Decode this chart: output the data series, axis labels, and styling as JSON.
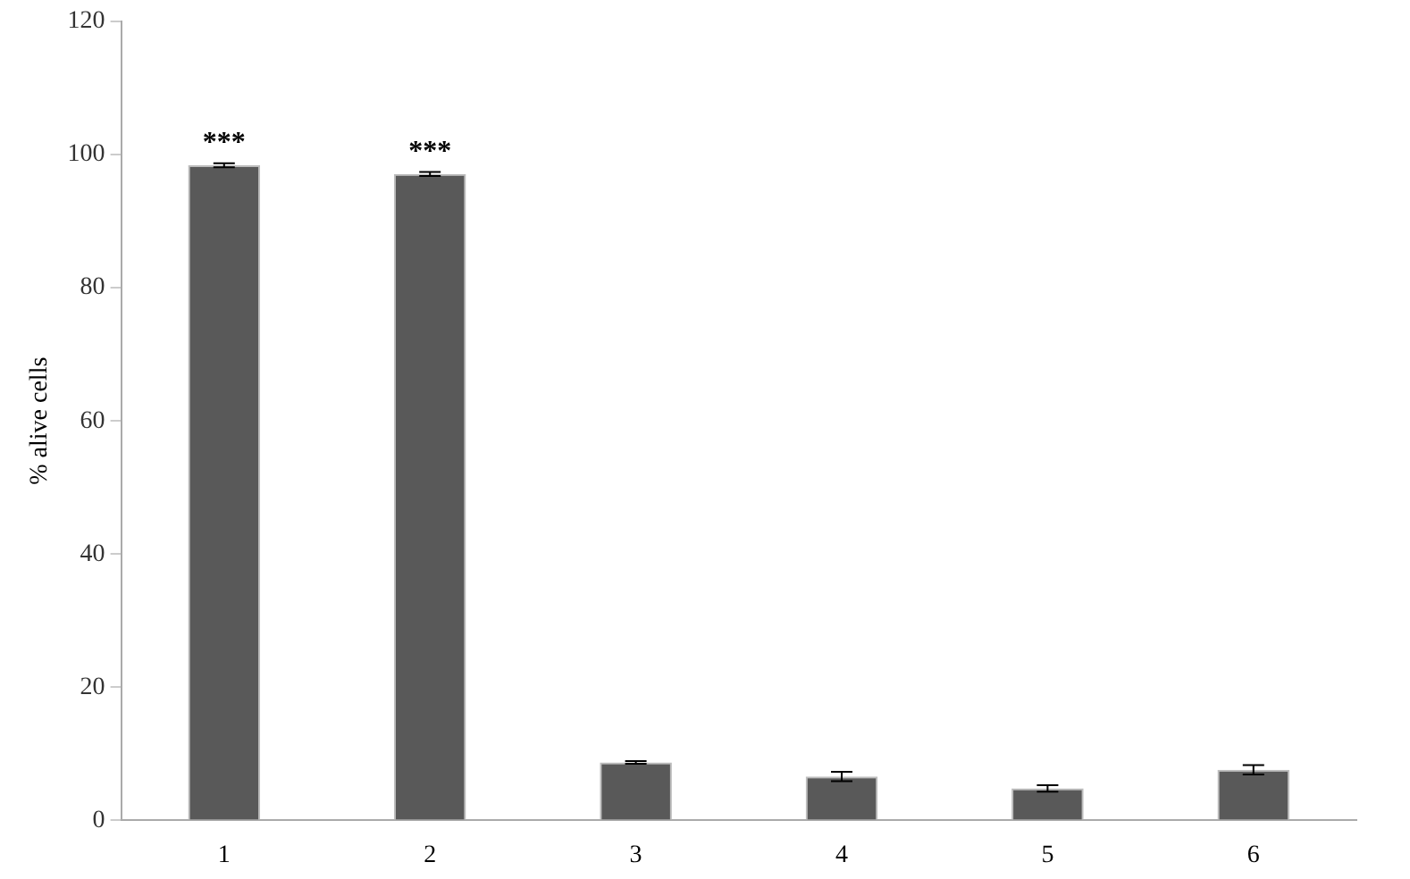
{
  "chart_data": {
    "type": "bar",
    "ylabel": "% alive cells",
    "categories": [
      "1",
      "2",
      "3",
      "4",
      "5",
      "6"
    ],
    "values": [
      98.4,
      97.1,
      8.7,
      6.6,
      4.8,
      7.6
    ],
    "errors": [
      0.3,
      0.3,
      0.2,
      0.7,
      0.5,
      0.7
    ],
    "color": "#595959",
    "ylim": [
      0,
      120
    ],
    "yticks": [
      0,
      20,
      40,
      60,
      80,
      100,
      120
    ],
    "grid": false,
    "legend": false,
    "annotations": [
      {
        "text": "***",
        "x": "1",
        "y": 98.4
      },
      {
        "text": "***",
        "x": "2",
        "y": 97.1
      }
    ]
  }
}
